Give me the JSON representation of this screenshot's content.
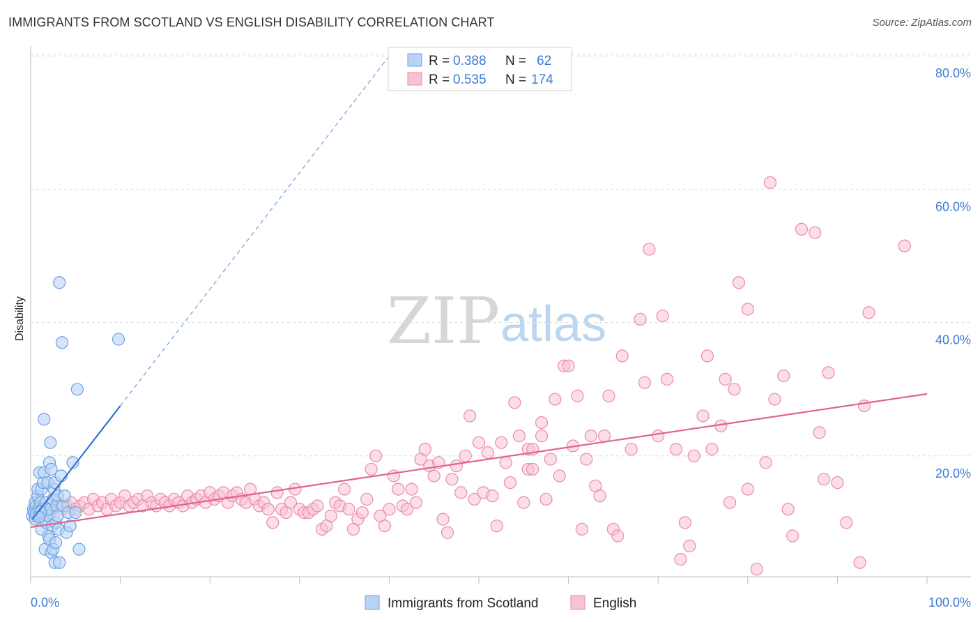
{
  "title": "IMMIGRANTS FROM SCOTLAND VS ENGLISH DISABILITY CORRELATION CHART",
  "source": "Source: ZipAtlas.com",
  "watermark": {
    "zip": "ZIP",
    "atlas": "atlas"
  },
  "legend": {
    "rows": [
      {
        "r_label": "R =",
        "r_value": "0.388",
        "n_label": "N =",
        "n_value": "62"
      },
      {
        "r_label": "R =",
        "r_value": "0.535",
        "n_label": "N =",
        "n_value": "174"
      }
    ]
  },
  "colors": {
    "scotland_fill": "#b8d3f5",
    "scotland_stroke": "#6f9fe0",
    "scotland_line": "#2f74d0",
    "english_fill": "#f7c3d3",
    "english_stroke": "#eb8aaa",
    "english_line": "#e0628f",
    "axis_label": "#3b7bd4",
    "grid": "#dddddd"
  },
  "chart_data": {
    "type": "scatter",
    "title": "IMMIGRANTS FROM SCOTLAND VS ENGLISH DISABILITY CORRELATION CHART",
    "xlabel": "",
    "ylabel": "Disability",
    "x_unit": "%",
    "xlim": [
      0,
      100
    ],
    "ylim": [
      0,
      85
    ],
    "y_ticks": [
      20,
      40,
      60,
      80
    ],
    "y_tick_labels": [
      "20.0%",
      "40.0%",
      "60.0%",
      "80.0%"
    ],
    "x_tick_labels": [
      "0.0%",
      "100.0%"
    ],
    "grid": true,
    "legend_position": "top-center",
    "series": [
      {
        "name": "Immigrants from Scotland",
        "color": "#6f9fe0",
        "r": 0.388,
        "n": 62,
        "trend": {
          "x0": 0.2,
          "y0": 10.5,
          "x1": 10,
          "y1": 27.5,
          "dash_to": [
            40,
            80
          ]
        },
        "points": [
          [
            0.2,
            11
          ],
          [
            0.3,
            12
          ],
          [
            0.4,
            11.5
          ],
          [
            0.5,
            13
          ],
          [
            0.5,
            10.5
          ],
          [
            0.6,
            12.5
          ],
          [
            0.7,
            11
          ],
          [
            0.8,
            14
          ],
          [
            0.8,
            15
          ],
          [
            0.9,
            12
          ],
          [
            1,
            17.5
          ],
          [
            1,
            11
          ],
          [
            1.1,
            13
          ],
          [
            1.2,
            15
          ],
          [
            1.2,
            9
          ],
          [
            1.3,
            12
          ],
          [
            1.4,
            11
          ],
          [
            1.4,
            16
          ],
          [
            1.5,
            25.5
          ],
          [
            1.5,
            17.5
          ],
          [
            1.6,
            6
          ],
          [
            1.7,
            10
          ],
          [
            1.7,
            13
          ],
          [
            1.8,
            12
          ],
          [
            1.9,
            16
          ],
          [
            2,
            11
          ],
          [
            2,
            8
          ],
          [
            2.1,
            19
          ],
          [
            2.1,
            7.5
          ],
          [
            2.2,
            12
          ],
          [
            2.2,
            22
          ],
          [
            2.3,
            18
          ],
          [
            2.3,
            5.5
          ],
          [
            2.4,
            9.5
          ],
          [
            2.5,
            13.5
          ],
          [
            2.5,
            6
          ],
          [
            2.6,
            15
          ],
          [
            2.7,
            16
          ],
          [
            2.7,
            4
          ],
          [
            2.8,
            10
          ],
          [
            2.8,
            7
          ],
          [
            2.9,
            12.5
          ],
          [
            3,
            14
          ],
          [
            3,
            11
          ],
          [
            3.1,
            9
          ],
          [
            3.2,
            46
          ],
          [
            3.2,
            4
          ],
          [
            3.4,
            17
          ],
          [
            3.5,
            37
          ],
          [
            3.6,
            12.5
          ],
          [
            3.8,
            14
          ],
          [
            4,
            8.5
          ],
          [
            4.2,
            11.5
          ],
          [
            4.4,
            9.5
          ],
          [
            4.7,
            19
          ],
          [
            5,
            11.5
          ],
          [
            5.2,
            30
          ],
          [
            5.4,
            6
          ],
          [
            0.6,
            11.3
          ],
          [
            1.1,
            11.6
          ],
          [
            9.8,
            37.5
          ],
          [
            0.9,
            10.8
          ]
        ]
      },
      {
        "name": "English",
        "color": "#eb8aaa",
        "r": 0.535,
        "n": 174,
        "trend": {
          "x0": 0,
          "y0": 9.3,
          "x1": 100,
          "y1": 29.3
        },
        "points": [
          [
            0.5,
            12
          ],
          [
            1,
            13
          ],
          [
            1.5,
            11.5
          ],
          [
            2,
            12.5
          ],
          [
            2.5,
            12
          ],
          [
            3,
            13
          ],
          [
            3.5,
            12
          ],
          [
            4,
            12.5
          ],
          [
            4.5,
            13
          ],
          [
            5,
            12
          ],
          [
            5.5,
            12.5
          ],
          [
            6,
            13
          ],
          [
            6.5,
            12
          ],
          [
            7,
            13.5
          ],
          [
            7.5,
            12.5
          ],
          [
            8,
            13
          ],
          [
            8.5,
            12
          ],
          [
            9,
            13.5
          ],
          [
            9.5,
            12.5
          ],
          [
            10,
            13
          ],
          [
            10.5,
            14
          ],
          [
            11,
            12.5
          ],
          [
            11.5,
            13
          ],
          [
            12,
            13.5
          ],
          [
            12.5,
            12.5
          ],
          [
            13,
            14
          ],
          [
            13.5,
            13
          ],
          [
            14,
            12.5
          ],
          [
            14.5,
            13.5
          ],
          [
            15,
            13
          ],
          [
            15.5,
            12.5
          ],
          [
            16,
            13.5
          ],
          [
            16.5,
            13
          ],
          [
            17,
            12.5
          ],
          [
            17.5,
            14
          ],
          [
            18,
            13
          ],
          [
            18.5,
            13.5
          ],
          [
            19,
            14
          ],
          [
            19.5,
            13
          ],
          [
            20,
            14.5
          ],
          [
            20.5,
            13.5
          ],
          [
            21,
            14
          ],
          [
            21.5,
            14.5
          ],
          [
            22,
            13
          ],
          [
            22.5,
            14
          ],
          [
            23,
            14.5
          ],
          [
            23.5,
            13.5
          ],
          [
            24,
            13
          ],
          [
            24.5,
            15
          ],
          [
            25,
            13.5
          ],
          [
            25.5,
            12.5
          ],
          [
            26,
            13
          ],
          [
            26.5,
            12
          ],
          [
            27,
            10
          ],
          [
            27.5,
            14.5
          ],
          [
            28,
            12
          ],
          [
            28.5,
            11.5
          ],
          [
            29,
            13
          ],
          [
            29.5,
            15
          ],
          [
            30,
            12
          ],
          [
            30.5,
            11.5
          ],
          [
            31,
            11.5
          ],
          [
            31.5,
            12
          ],
          [
            32,
            12.5
          ],
          [
            32.5,
            9
          ],
          [
            33,
            9.5
          ],
          [
            33.5,
            11
          ],
          [
            34,
            13
          ],
          [
            34.5,
            12.5
          ],
          [
            35,
            15
          ],
          [
            35.5,
            12
          ],
          [
            36,
            9
          ],
          [
            36.5,
            10.5
          ],
          [
            37,
            11.5
          ],
          [
            37.5,
            13.5
          ],
          [
            38,
            18
          ],
          [
            38.5,
            20
          ],
          [
            39,
            11
          ],
          [
            39.5,
            9.5
          ],
          [
            40,
            12
          ],
          [
            40.5,
            17
          ],
          [
            41,
            15
          ],
          [
            41.5,
            12.5
          ],
          [
            42,
            12
          ],
          [
            42.5,
            15
          ],
          [
            43,
            13
          ],
          [
            43.5,
            19.5
          ],
          [
            44,
            21
          ],
          [
            44.5,
            18.5
          ],
          [
            45,
            17
          ],
          [
            45.5,
            19
          ],
          [
            46,
            10.5
          ],
          [
            46.5,
            8.5
          ],
          [
            47,
            16.5
          ],
          [
            47.5,
            18.5
          ],
          [
            48,
            14.5
          ],
          [
            48.5,
            20
          ],
          [
            49,
            26
          ],
          [
            49.5,
            13.5
          ],
          [
            50,
            22
          ],
          [
            50.5,
            14.5
          ],
          [
            51,
            20.5
          ],
          [
            51.5,
            14
          ],
          [
            52,
            9.5
          ],
          [
            52.5,
            22
          ],
          [
            53,
            19
          ],
          [
            53.5,
            16
          ],
          [
            54,
            28
          ],
          [
            54.5,
            23
          ],
          [
            55,
            13
          ],
          [
            55.5,
            18
          ],
          [
            55.5,
            21
          ],
          [
            56,
            18
          ],
          [
            56,
            21
          ],
          [
            57,
            25
          ],
          [
            57,
            23
          ],
          [
            57.5,
            13.5
          ],
          [
            58,
            19.5
          ],
          [
            58.5,
            28.5
          ],
          [
            59,
            17
          ],
          [
            59.5,
            33.5
          ],
          [
            60,
            33.5
          ],
          [
            60.5,
            21.5
          ],
          [
            61,
            29
          ],
          [
            61.5,
            9
          ],
          [
            62,
            19.5
          ],
          [
            62.5,
            23
          ],
          [
            63,
            15.5
          ],
          [
            63.5,
            14
          ],
          [
            64,
            23
          ],
          [
            64.5,
            29
          ],
          [
            65,
            9
          ],
          [
            65.5,
            8
          ],
          [
            66,
            35
          ],
          [
            67,
            21
          ],
          [
            68,
            40.5
          ],
          [
            68.5,
            31
          ],
          [
            69,
            51
          ],
          [
            70,
            23
          ],
          [
            70.5,
            41
          ],
          [
            71,
            31.5
          ],
          [
            72,
            21
          ],
          [
            72.5,
            4.5
          ],
          [
            73,
            10
          ],
          [
            73.5,
            6.5
          ],
          [
            74,
            20
          ],
          [
            75,
            26
          ],
          [
            75.5,
            35
          ],
          [
            76,
            21
          ],
          [
            77,
            24.5
          ],
          [
            77.5,
            31.5
          ],
          [
            78,
            13
          ],
          [
            78.5,
            30
          ],
          [
            79,
            46
          ],
          [
            80,
            42
          ],
          [
            80,
            15
          ],
          [
            81,
            3
          ],
          [
            82,
            19
          ],
          [
            82.5,
            61
          ],
          [
            83,
            28.5
          ],
          [
            84,
            32
          ],
          [
            84.5,
            12
          ],
          [
            85,
            8
          ],
          [
            86,
            54
          ],
          [
            87.5,
            53.5
          ],
          [
            88,
            23.5
          ],
          [
            88.5,
            16.5
          ],
          [
            89,
            32.5
          ],
          [
            90,
            16
          ],
          [
            91,
            10
          ],
          [
            92.5,
            4
          ],
          [
            93,
            27.5
          ],
          [
            93.5,
            41.5
          ],
          [
            97.5,
            51.5
          ]
        ]
      }
    ]
  }
}
